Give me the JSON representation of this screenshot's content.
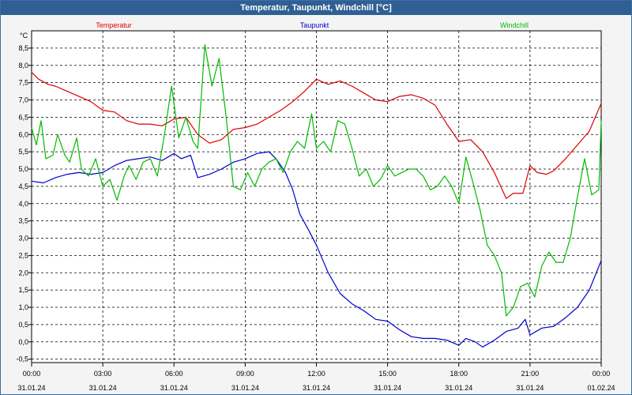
{
  "window": {
    "title": "Temperatur, Taupunkt, Windchill [°C]"
  },
  "chart_data": {
    "type": "line",
    "title": "Temperatur, Taupunkt, Windchill [°C]",
    "ylabel": "°C",
    "ylim": [
      -0.6,
      9.0
    ],
    "yticks": [
      "-0,5",
      "0,0",
      "0,5",
      "1,0",
      "1,5",
      "2,0",
      "2,5",
      "3,0",
      "3,5",
      "4,0",
      "4,5",
      "5,0",
      "5,5",
      "6,0",
      "6,5",
      "7,0",
      "7,5",
      "8,0",
      "8,5"
    ],
    "ytick_values": [
      -0.5,
      0,
      0.5,
      1,
      1.5,
      2,
      2.5,
      3,
      3.5,
      4,
      4.5,
      5,
      5.5,
      6,
      6.5,
      7,
      7.5,
      8,
      8.5
    ],
    "xlim": [
      0,
      24
    ],
    "x_ticks": [
      {
        "x": 0,
        "time": "00:00",
        "date": "31.01.24"
      },
      {
        "x": 3,
        "time": "03:00",
        "date": "31.01.24"
      },
      {
        "x": 6,
        "time": "06:00",
        "date": "31.01.24"
      },
      {
        "x": 9,
        "time": "09:00",
        "date": "31.01.24"
      },
      {
        "x": 12,
        "time": "12:00",
        "date": "31.01.24"
      },
      {
        "x": 15,
        "time": "15:00",
        "date": "31.01.24"
      },
      {
        "x": 18,
        "time": "18:00",
        "date": "31.01.24"
      },
      {
        "x": 21,
        "time": "21:00",
        "date": "31.01.24"
      },
      {
        "x": 24,
        "time": "00:00",
        "date": "01.02.24"
      }
    ],
    "grid": true,
    "legend_position": "top",
    "series": [
      {
        "name": "Temperatur",
        "color": "#dd0000",
        "x": [
          0,
          0.3,
          0.7,
          1,
          1.5,
          2,
          2.5,
          3,
          3.5,
          4,
          4.5,
          5,
          5.5,
          6,
          6.5,
          7,
          7.5,
          8,
          8.5,
          9,
          9.5,
          10,
          10.5,
          11,
          11.5,
          12,
          12.5,
          13,
          13.5,
          14,
          14.5,
          15,
          15.5,
          16,
          16.5,
          17,
          17.5,
          18,
          18.5,
          19,
          19.5,
          20,
          20.3,
          20.7,
          21,
          21.3,
          21.7,
          22,
          22.5,
          23,
          23.5,
          24
        ],
        "y": [
          7.8,
          7.6,
          7.45,
          7.4,
          7.25,
          7.1,
          6.95,
          6.7,
          6.65,
          6.4,
          6.3,
          6.3,
          6.25,
          6.45,
          6.5,
          6.0,
          5.75,
          5.85,
          6.15,
          6.2,
          6.3,
          6.5,
          6.7,
          6.95,
          7.25,
          7.6,
          7.45,
          7.55,
          7.4,
          7.2,
          7.0,
          6.95,
          7.1,
          7.15,
          7.05,
          6.85,
          6.3,
          5.8,
          5.85,
          5.5,
          4.9,
          4.15,
          4.3,
          4.3,
          5.1,
          4.9,
          4.85,
          4.95,
          5.3,
          5.7,
          6.1,
          6.9
        ]
      },
      {
        "name": "Taupunkt",
        "color": "#0000cc",
        "x": [
          0,
          0.5,
          1,
          1.5,
          2,
          2.5,
          3,
          3.5,
          4,
          4.5,
          5,
          5.5,
          6,
          6.3,
          6.7,
          7,
          7.5,
          8,
          8.5,
          9,
          9.5,
          10,
          10.3,
          10.7,
          11,
          11.3,
          11.7,
          12,
          12.5,
          13,
          13.5,
          14,
          14.5,
          15,
          15.5,
          16,
          16.5,
          17,
          17.5,
          18,
          18.3,
          18.7,
          19,
          19.5,
          20,
          20.5,
          20.8,
          21,
          21.5,
          22,
          22.5,
          23,
          23.5,
          24
        ],
        "y": [
          4.65,
          4.6,
          4.75,
          4.85,
          4.9,
          4.85,
          4.9,
          5.1,
          5.25,
          5.3,
          5.35,
          5.25,
          5.45,
          5.3,
          5.4,
          4.75,
          4.85,
          5.0,
          5.2,
          5.3,
          5.45,
          5.5,
          5.3,
          4.9,
          4.4,
          3.7,
          3.2,
          2.8,
          2.0,
          1.4,
          1.1,
          0.9,
          0.65,
          0.6,
          0.35,
          0.15,
          0.1,
          0.1,
          0.05,
          -0.1,
          0.1,
          0.0,
          -0.15,
          0.05,
          0.3,
          0.4,
          0.65,
          0.2,
          0.4,
          0.45,
          0.7,
          1.0,
          1.5,
          2.35
        ]
      },
      {
        "name": "Windchill",
        "color": "#00bb00",
        "x": [
          0,
          0.2,
          0.4,
          0.6,
          0.9,
          1.1,
          1.4,
          1.6,
          1.9,
          2.1,
          2.4,
          2.7,
          3,
          3.3,
          3.6,
          3.9,
          4.1,
          4.4,
          4.7,
          5,
          5.3,
          5.6,
          5.9,
          6.2,
          6.5,
          6.8,
          7,
          7.3,
          7.6,
          7.9,
          8.2,
          8.5,
          8.8,
          9.1,
          9.4,
          9.7,
          10,
          10.3,
          10.6,
          10.9,
          11.2,
          11.5,
          11.8,
          12,
          12.3,
          12.6,
          12.9,
          13.2,
          13.5,
          13.8,
          14.1,
          14.4,
          14.7,
          15,
          15.3,
          15.6,
          15.9,
          16.2,
          16.5,
          16.8,
          17.1,
          17.4,
          17.7,
          18,
          18.3,
          18.6,
          18.9,
          19.2,
          19.5,
          19.8,
          20,
          20.3,
          20.6,
          20.9,
          21.2,
          21.5,
          21.8,
          22.1,
          22.4,
          22.7,
          23,
          23.3,
          23.6,
          23.9,
          24
        ],
        "y": [
          6.2,
          5.7,
          6.4,
          5.3,
          5.4,
          6.0,
          5.4,
          5.2,
          5.9,
          5.0,
          4.8,
          5.3,
          4.5,
          4.7,
          4.1,
          4.8,
          5.1,
          4.7,
          5.2,
          5.3,
          4.8,
          6.0,
          7.4,
          5.9,
          6.5,
          5.8,
          5.6,
          8.6,
          7.4,
          8.2,
          6.5,
          4.5,
          4.4,
          4.9,
          4.5,
          5.0,
          5.2,
          5.3,
          4.9,
          5.5,
          5.8,
          5.6,
          6.6,
          5.6,
          5.8,
          5.5,
          6.4,
          6.3,
          5.6,
          4.8,
          5.0,
          4.5,
          4.7,
          5.1,
          4.8,
          4.9,
          5.0,
          5.0,
          4.8,
          4.4,
          4.5,
          4.8,
          4.5,
          4.0,
          5.35,
          4.6,
          3.8,
          2.8,
          2.5,
          2.0,
          0.75,
          1.0,
          1.6,
          1.7,
          1.3,
          2.2,
          2.6,
          2.3,
          2.3,
          3.0,
          4.2,
          5.3,
          4.25,
          4.4,
          6.4
        ]
      }
    ]
  }
}
